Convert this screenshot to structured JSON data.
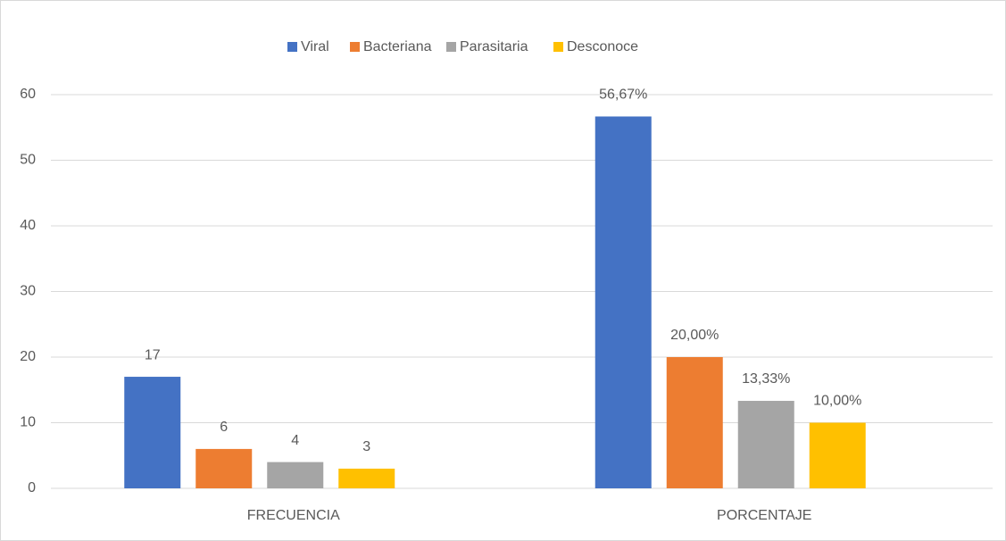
{
  "chart_data": {
    "type": "bar",
    "categories": [
      "FRECUENCIA",
      "PORCENTAJE"
    ],
    "series": [
      {
        "name": "Viral",
        "color": "#4472c4",
        "values": [
          17,
          56.67
        ],
        "value_labels": [
          "17",
          "56,67%"
        ]
      },
      {
        "name": "Bacteriana",
        "color": "#ed7d31",
        "values": [
          6,
          20
        ],
        "value_labels": [
          "6",
          "20,00%"
        ]
      },
      {
        "name": "Parasitaria",
        "color": "#a5a5a5",
        "values": [
          4,
          13.33
        ],
        "value_labels": [
          "4",
          "13,33%"
        ]
      },
      {
        "name": "Desconoce",
        "color": "#ffc000",
        "values": [
          3,
          10
        ],
        "value_labels": [
          "3",
          "10,00%"
        ]
      }
    ],
    "ylim": [
      0,
      60
    ],
    "yticks": [
      0,
      10,
      20,
      30,
      40,
      50,
      60
    ],
    "grid": true,
    "legend": "top"
  }
}
